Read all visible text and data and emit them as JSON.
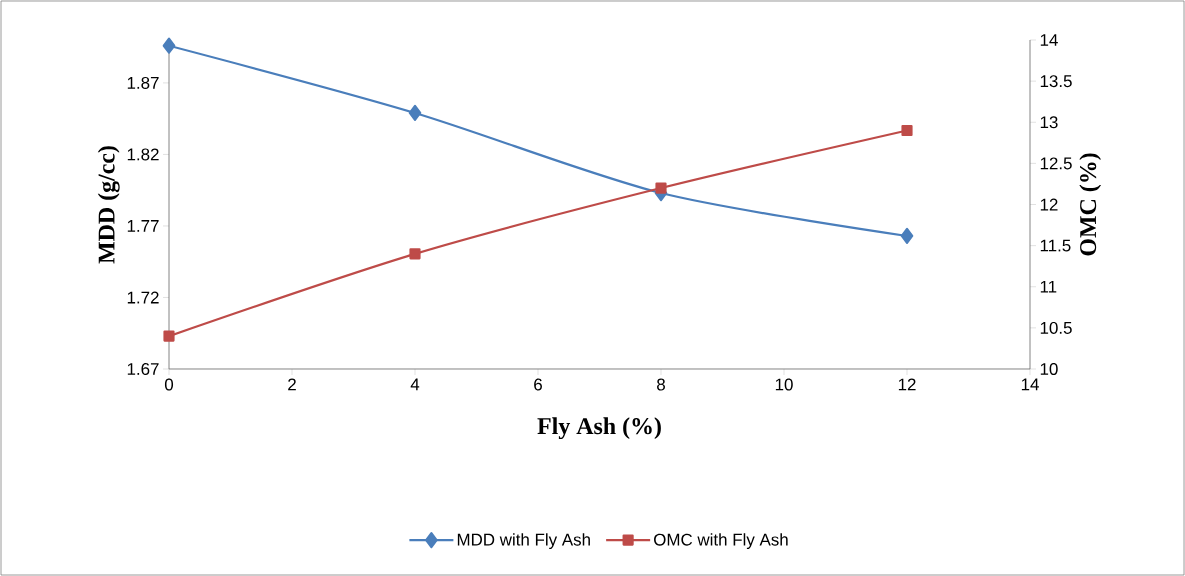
{
  "chart_data": {
    "type": "line",
    "xlabel": "Fly Ash (%)",
    "ylabel": "MDD (g/cc)",
    "y2label": "OMC (%)",
    "x": [
      0,
      4,
      8,
      12
    ],
    "series": [
      {
        "name": "MDD with Fly Ash",
        "color": "#4a7ebb",
        "values": [
          1.896,
          1.849,
          1.793,
          1.763
        ],
        "marker": "diamond"
      },
      {
        "name": "OMC with Fly Ash",
        "color": "#be4b48",
        "values": [
          10.4,
          11.4,
          12.2,
          12.9
        ],
        "axis": "y2",
        "marker": "square"
      }
    ],
    "xlim": [
      0,
      14
    ],
    "xticks": [
      0,
      2,
      4,
      6,
      8,
      10,
      12,
      14
    ],
    "ylim": [
      1.67,
      1.9
    ],
    "yticks": [
      1.67,
      1.72,
      1.77,
      1.82,
      1.87
    ],
    "y2lim": [
      10,
      14
    ],
    "y2ticks": [
      10,
      10.5,
      11,
      11.5,
      12,
      12.5,
      13,
      13.5,
      14
    ],
    "legend": "bottom",
    "line_style": "solid"
  }
}
